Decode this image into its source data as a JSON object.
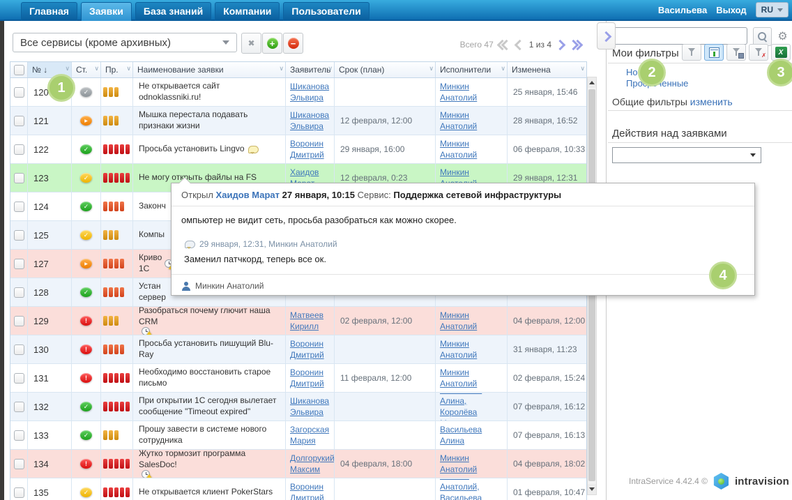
{
  "colors": {
    "nav_blue": "#0f6fb2",
    "tab_active_blue": "#4fb0e4",
    "link_blue": "#4078bc",
    "badge_green": "#a9cf6f",
    "overdue_row_pink": "#fbdeda",
    "selected_row_green": "#c9f6c5",
    "priority_orange": "#dd9a22",
    "priority_red_orange": "#e0542a",
    "priority_red": "#cf1120",
    "excel_green": "#1f8a3d"
  },
  "nav": {
    "tabs": [
      {
        "key": "home",
        "label": "Главная",
        "active": false
      },
      {
        "key": "tickets",
        "label": "Заявки",
        "active": true
      },
      {
        "key": "knowledge-base",
        "label": "База знаний",
        "active": false
      },
      {
        "key": "companies",
        "label": "Компании",
        "active": false
      },
      {
        "key": "users",
        "label": "Пользователи",
        "active": false
      }
    ],
    "user": "Васильева",
    "logout": "Выход",
    "lang": "RU"
  },
  "toolbar": {
    "service_filter_value": "Все сервисы (кроме архивных)",
    "total_label": "Всего 47",
    "page_label": "1 из 4"
  },
  "icons": {
    "sort_desc": "↓",
    "column_menu": "∨",
    "clear": "✖",
    "add": "+",
    "remove": "−",
    "gear": "⚙",
    "excel": "X"
  },
  "table": {
    "headers": {
      "num": "№",
      "status": "Ст.",
      "priority": "Пр.",
      "title": "Наименование заявки",
      "requester": "Заявитель",
      "due": "Срок (план)",
      "assignees": "Исполнители",
      "changed": "Изменена"
    },
    "status_glyphs": {
      "grey": "✓",
      "orange": "▶",
      "green": "✓",
      "yellow": "✓",
      "red": "!"
    },
    "rows": [
      {
        "id": "120",
        "status": "grey",
        "priority": 3,
        "priority_color": "orange",
        "title": "Не открывается сайт odnoklassniki.ru!",
        "title_icon": "",
        "requester": "Шиканова\nЭльвира",
        "due": "",
        "assignees": "Минкин Анатолий",
        "changed": "25 января, 15:46",
        "zebra": "odd",
        "highlight": ""
      },
      {
        "id": "121",
        "status": "orange",
        "priority": 3,
        "priority_color": "orange",
        "title": "Мышка перестала подавать признаки жизни",
        "title_icon": "",
        "requester": "Шиканова\nЭльвира",
        "due": "12 февраля, 12:00",
        "assignees": "Минкин Анатолий",
        "changed": "28 января, 16:52",
        "zebra": "even",
        "highlight": ""
      },
      {
        "id": "122",
        "status": "green",
        "priority": 5,
        "priority_color": "red",
        "title": "Просьба установить Lingvo",
        "title_icon": "comment",
        "requester": "Воронин\nДмитрий",
        "due": "29 января, 16:00",
        "assignees": "Минкин Анатолий",
        "changed": "06 февраля, 10:33",
        "zebra": "odd",
        "highlight": ""
      },
      {
        "id": "123",
        "status": "yellow",
        "priority": 5,
        "priority_color": "red",
        "title": "Не могу открыть файлы на FS",
        "title_icon": "",
        "requester": "Хаидов Марат",
        "due": "12 февраля, 0:23",
        "assignees": "Минкин Анатолий",
        "changed": "29 января, 12:31",
        "zebra": "even",
        "highlight": "selected"
      },
      {
        "id": "124",
        "status": "green",
        "priority": 4,
        "priority_color": "redorange",
        "title": "Законч",
        "title_icon": "",
        "requester": "",
        "due": "",
        "assignees": "",
        "changed": "",
        "zebra": "odd",
        "highlight": ""
      },
      {
        "id": "125",
        "status": "yellow",
        "priority": 3,
        "priority_color": "orange",
        "title": "Компы",
        "title_icon": "",
        "requester": "",
        "due": "",
        "assignees": "",
        "changed": "",
        "zebra": "even",
        "highlight": ""
      },
      {
        "id": "127",
        "status": "orange",
        "priority": 4,
        "priority_color": "redorange",
        "title": "Криво\n1С",
        "title_icon": "overdue",
        "requester": "",
        "due": "",
        "assignees": "",
        "changed": "",
        "zebra": "odd",
        "highlight": "overdue"
      },
      {
        "id": "128",
        "status": "green",
        "priority": 4,
        "priority_color": "redorange",
        "title": "Устан\nсервер",
        "title_icon": "",
        "requester": "",
        "due": "",
        "assignees": "",
        "changed": "",
        "zebra": "even",
        "highlight": ""
      },
      {
        "id": "129",
        "status": "red",
        "priority": 3,
        "priority_color": "orange",
        "title": "Разобраться почему глючит наша CRM",
        "title_icon": "overdue",
        "requester": "Матвеев\nКирилл",
        "due": "02 февраля, 12:00",
        "assignees": "Минкин Анатолий",
        "changed": "04 февраля, 12:00",
        "zebra": "odd",
        "highlight": "overdue"
      },
      {
        "id": "130",
        "status": "red",
        "priority": 4,
        "priority_color": "redorange",
        "title": "Просьба установить пишущий Blu-Ray",
        "title_icon": "",
        "requester": "Воронин\nДмитрий",
        "due": "",
        "assignees": "Минкин Анатолий",
        "changed": "31 января, 11:23",
        "zebra": "even",
        "highlight": ""
      },
      {
        "id": "131",
        "status": "red",
        "priority": 5,
        "priority_color": "red",
        "title": "Необходимо восстановить старое письмо",
        "title_icon": "",
        "requester": "Воронин\nДмитрий",
        "due": "11 февраля, 12:00",
        "assignees": "Минкин Анатолий",
        "changed": "02 февраля, 15:24",
        "zebra": "odd",
        "highlight": ""
      },
      {
        "id": "132",
        "status": "green",
        "priority": 5,
        "priority_color": "red",
        "title": "При открытии 1С сегодня вылетает сообщение \"Timeout expired\"",
        "title_icon": "",
        "requester": "Шиканова\nЭльвира",
        "due": "",
        "assignees": "Васильева Алина,\nКоролёва Марина",
        "changed": "07 февраля, 16:12",
        "zebra": "even",
        "highlight": ""
      },
      {
        "id": "133",
        "status": "green",
        "priority": 3,
        "priority_color": "orange",
        "title": "Прошу завести в системе нового сотрудника",
        "title_icon": "",
        "requester": "Загорская\nМария",
        "due": "",
        "assignees": "Васильева Алина",
        "changed": "07 февраля, 16:13",
        "zebra": "odd",
        "highlight": ""
      },
      {
        "id": "134",
        "status": "red",
        "priority": 5,
        "priority_color": "red",
        "title": "Жутко тормозит программа SalesDoc!",
        "title_icon": "overdue",
        "requester": "Долгорукий\nМаксим",
        "due": "04 февраля, 18:00",
        "assignees": "Минкин Анатолий",
        "changed": "04 февраля, 18:02",
        "zebra": "even",
        "highlight": "overdue"
      },
      {
        "id": "135",
        "status": "yellow",
        "priority": 5,
        "priority_color": "red",
        "title": "Не открывается клиент PokerStars",
        "title_icon": "",
        "requester": "Воронин\nДмитрий",
        "due": "",
        "assignees": "Минкин Анатолий,\nВасильева Алина",
        "changed": "01 февраля, 10:47",
        "zebra": "odd",
        "highlight": ""
      }
    ]
  },
  "popup": {
    "opened_label": "Открыл",
    "opener": "Хаидов Марат",
    "opened_at": "27 января, 10:15",
    "service_label": "Сервис:",
    "service": "Поддержка сетевой инфраструктуры",
    "description": "омпьютер не видит сеть, просьба разобраться как можно скорее.",
    "comment_meta": "29 января, 12:31, Минкин Анатолий",
    "comment_text": "Заменил патчкорд, теперь все ок.",
    "footer_user": "Минкин Анатолий"
  },
  "sidebar": {
    "search_value": "",
    "my_filters_label": "Мои фильтры",
    "filters": [
      "Новые",
      "Просроченные"
    ],
    "common_filters_label": "Общие фильтры",
    "common_filters_edit": "изменить",
    "actions_label": "Действия над заявками",
    "action_select_value": ""
  },
  "footer": {
    "version": "IntraService 4.42.4 ©",
    "brand": "intravision"
  },
  "badges": [
    {
      "n": "1"
    },
    {
      "n": "2"
    },
    {
      "n": "3"
    },
    {
      "n": "4"
    }
  ]
}
